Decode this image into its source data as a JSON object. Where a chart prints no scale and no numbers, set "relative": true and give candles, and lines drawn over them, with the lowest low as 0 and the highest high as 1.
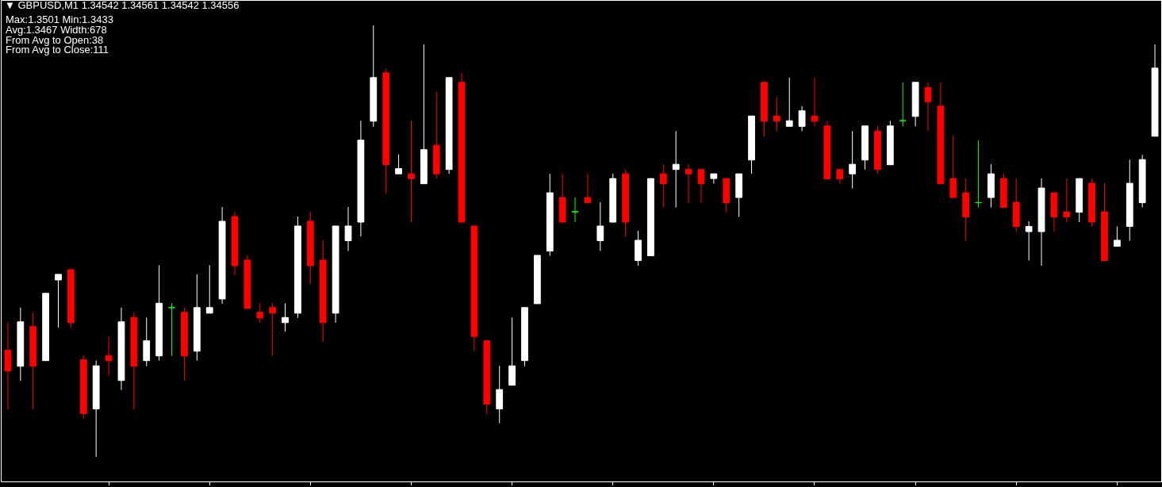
{
  "chart_data": {
    "type": "candlestick",
    "relative": true,
    "title": "▼ GBPUSD,M1 1.34542 1.34561 1.34542 1.34556",
    "annotations": [
      "Max:1.3501 Min:1.3433",
      "Avg:1.3467 Width:678",
      "From Avg to Open:38",
      "From Avg to Close:111"
    ],
    "categories": [
      null,
      null,
      null,
      null,
      null,
      null,
      null,
      null,
      null,
      null,
      null,
      null,
      null,
      null,
      null,
      null,
      null,
      null,
      null,
      null,
      null,
      null,
      null,
      null,
      null,
      null,
      null,
      null,
      null,
      null,
      null,
      null,
      null,
      null,
      null,
      null,
      null,
      null,
      null,
      null,
      null,
      null,
      null,
      null,
      null,
      null,
      null,
      null,
      null,
      null,
      null,
      null,
      null,
      null,
      null,
      null,
      null,
      null,
      null,
      null,
      null,
      null,
      null,
      null,
      null,
      null,
      null,
      null,
      null,
      null,
      null,
      null,
      null,
      null,
      null,
      null,
      null,
      null,
      null,
      null,
      null,
      null,
      null,
      null,
      null,
      null,
      null,
      null,
      null,
      null,
      null,
      null
    ],
    "ohlc": [
      [
        0.247,
        0.312,
        0.11,
        0.199
      ],
      [
        0.21,
        0.346,
        0.176,
        0.313
      ],
      [
        0.302,
        0.335,
        0.11,
        0.21
      ],
      [
        0.223,
        0.379,
        0.223,
        0.379
      ],
      [
        0.41,
        0.423,
        0.3,
        0.423
      ],
      [
        0.434,
        0.434,
        0.3,
        0.311
      ],
      [
        0.225,
        0.235,
        0.089,
        0.1
      ],
      [
        0.111,
        0.223,
        0,
        0.211
      ],
      [
        0.235,
        0.279,
        0.189,
        0.223
      ],
      [
        0.177,
        0.346,
        0.155,
        0.313
      ],
      [
        0.323,
        0.335,
        0.11,
        0.21
      ],
      [
        0.223,
        0.323,
        0.21,
        0.269
      ],
      [
        0.234,
        0.444,
        0.223,
        0.356
      ],
      [
        0.346,
        0.356,
        0.234,
        0.346
      ],
      [
        0.335,
        0.346,
        0.177,
        0.234
      ],
      [
        0.245,
        0.423,
        0.223,
        0.346
      ],
      [
        0.333,
        0.444,
        0.333,
        0.346
      ],
      [
        0.366,
        0.579,
        0.355,
        0.546
      ],
      [
        0.557,
        0.568,
        0.421,
        0.443
      ],
      [
        0.456,
        0.467,
        0.344,
        0.344
      ],
      [
        0.335,
        0.356,
        0.311,
        0.322
      ],
      [
        0.346,
        0.356,
        0.234,
        0.333
      ],
      [
        0.311,
        0.356,
        0.29,
        0.323
      ],
      [
        0.333,
        0.557,
        0.322,
        0.535
      ],
      [
        0.546,
        0.568,
        0.4,
        0.443
      ],
      [
        0.456,
        0.502,
        0.267,
        0.311
      ],
      [
        0.333,
        0.535,
        0.311,
        0.535
      ],
      [
        0.501,
        0.579,
        0.477,
        0.535
      ],
      [
        0.544,
        0.779,
        0.511,
        0.734
      ],
      [
        0.778,
        1,
        0.765,
        0.879
      ],
      [
        0.89,
        0.9,
        0.611,
        0.677
      ],
      [
        0.656,
        0.701,
        0.656,
        0.668
      ],
      [
        0.656,
        0.779,
        0.544,
        0.645
      ],
      [
        0.633,
        0.956,
        0.633,
        0.712
      ],
      [
        0.722,
        0.846,
        0.645,
        0.656
      ],
      [
        0.666,
        0.879,
        0.656,
        0.879
      ],
      [
        0.868,
        0.89,
        0.544,
        0.544
      ],
      [
        0.535,
        0.535,
        0.245,
        0.279
      ],
      [
        0.269,
        0.269,
        0.099,
        0.122
      ],
      [
        0.111,
        0.211,
        0.078,
        0.156
      ],
      [
        0.166,
        0.323,
        0.166,
        0.211
      ],
      [
        0.223,
        0.346,
        0.21,
        0.346
      ],
      [
        0.355,
        0.467,
        0.355,
        0.467
      ],
      [
        0.477,
        0.656,
        0.466,
        0.612
      ],
      [
        0.601,
        0.656,
        0.544,
        0.544
      ],
      [
        0.568,
        0.601,
        0.544,
        0.568
      ],
      [
        0.601,
        0.656,
        0.589,
        0.589
      ],
      [
        0.501,
        0.59,
        0.477,
        0.535
      ],
      [
        0.544,
        0.656,
        0.544,
        0.645
      ],
      [
        0.656,
        0.666,
        0.511,
        0.544
      ],
      [
        0.455,
        0.524,
        0.443,
        0.502
      ],
      [
        0.466,
        0.645,
        0.466,
        0.645
      ],
      [
        0.656,
        0.678,
        0.578,
        0.633
      ],
      [
        0.666,
        0.755,
        0.578,
        0.678
      ],
      [
        0.666,
        0.678,
        0.589,
        0.656
      ],
      [
        0.666,
        0.666,
        0.589,
        0.633
      ],
      [
        0.645,
        0.656,
        0.633,
        0.656
      ],
      [
        0.645,
        0.645,
        0.567,
        0.589
      ],
      [
        0.601,
        0.656,
        0.556,
        0.656
      ],
      [
        0.688,
        0.79,
        0.656,
        0.79
      ],
      [
        0.868,
        0.868,
        0.743,
        0.778
      ],
      [
        0.79,
        0.834,
        0.755,
        0.778
      ],
      [
        0.766,
        0.879,
        0.766,
        0.779
      ],
      [
        0.766,
        0.813,
        0.755,
        0.802
      ],
      [
        0.79,
        0.879,
        0.766,
        0.778
      ],
      [
        0.767,
        0.779,
        0.644,
        0.644
      ],
      [
        0.666,
        0.666,
        0.633,
        0.644
      ],
      [
        0.656,
        0.755,
        0.622,
        0.678
      ],
      [
        0.688,
        0.767,
        0.666,
        0.767
      ],
      [
        0.755,
        0.767,
        0.656,
        0.666
      ],
      [
        0.677,
        0.779,
        0.677,
        0.767
      ],
      [
        0.779,
        0.868,
        0.766,
        0.779
      ],
      [
        0.789,
        0.868,
        0.766,
        0.868
      ],
      [
        0.856,
        0.868,
        0.755,
        0.823
      ],
      [
        0.813,
        0.868,
        0.633,
        0.633
      ],
      [
        0.645,
        0.745,
        0.601,
        0.601
      ],
      [
        0.612,
        0.645,
        0.501,
        0.556
      ],
      [
        0.589,
        0.733,
        0.578,
        0.589
      ],
      [
        0.601,
        0.678,
        0.578,
        0.656
      ],
      [
        0.645,
        0.656,
        0.578,
        0.578
      ],
      [
        0.59,
        0.645,
        0.522,
        0.534
      ],
      [
        0.522,
        0.546,
        0.455,
        0.534
      ],
      [
        0.522,
        0.645,
        0.443,
        0.623
      ],
      [
        0.612,
        0.612,
        0.522,
        0.556
      ],
      [
        0.568,
        0.645,
        0.544,
        0.556
      ],
      [
        0.567,
        0.645,
        0.544,
        0.645
      ],
      [
        0.634,
        0.645,
        0.534,
        0.544
      ],
      [
        0.568,
        0.634,
        0.455,
        0.455
      ],
      [
        0.488,
        0.534,
        0.488,
        0.502
      ],
      [
        0.534,
        0.689,
        0.501,
        0.634
      ],
      [
        0.589,
        0.7,
        0.578,
        0.689
      ],
      [
        0.743,
        0.956,
        0.743,
        0.901
      ]
    ],
    "colors": [
      "#ff0000",
      "#ffffff",
      "#ff0000",
      "#ffffff",
      "#ffffff",
      "#ff0000",
      "#ff0000",
      "#ffffff",
      "#ff0000",
      "#ffffff",
      "#ff0000",
      "#ffffff",
      "#ffffff",
      "#00ff00",
      "#ff0000",
      "#ffffff",
      "#ffffff",
      "#ffffff",
      "#ff0000",
      "#ff0000",
      "#ff0000",
      "#ff0000",
      "#ffffff",
      "#ffffff",
      "#ff0000",
      "#ff0000",
      "#ffffff",
      "#ffffff",
      "#ffffff",
      "#ffffff",
      "#ff0000",
      "#ffffff",
      "#ff0000",
      "#ffffff",
      "#ff0000",
      "#ffffff",
      "#ff0000",
      "#ff0000",
      "#ff0000",
      "#ffffff",
      "#ffffff",
      "#ffffff",
      "#ffffff",
      "#ffffff",
      "#ff0000",
      "#00ff00",
      "#ff0000",
      "#ffffff",
      "#ffffff",
      "#ff0000",
      "#ffffff",
      "#ffffff",
      "#ff0000",
      "#ffffff",
      "#ff0000",
      "#ff0000",
      "#ffffff",
      "#ff0000",
      "#ffffff",
      "#ffffff",
      "#ff0000",
      "#ff0000",
      "#ffffff",
      "#ffffff",
      "#ff0000",
      "#ff0000",
      "#ff0000",
      "#ffffff",
      "#ffffff",
      "#ff0000",
      "#ffffff",
      "#00ff00",
      "#ffffff",
      "#ff0000",
      "#ff0000",
      "#ff0000",
      "#ff0000",
      "#00ff00",
      "#ffffff",
      "#ff0000",
      "#ff0000",
      "#ffffff",
      "#ffffff",
      "#ff0000",
      "#ff0000",
      "#ffffff",
      "#ff0000",
      "#ff0000",
      "#ffffff",
      "#ffffff",
      "#ffffff",
      "#ffffff"
    ]
  }
}
